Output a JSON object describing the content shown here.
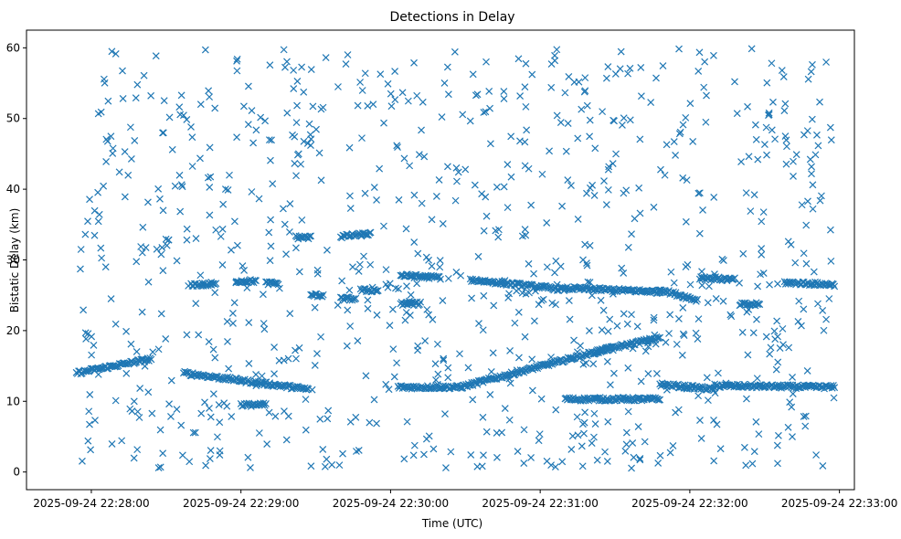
{
  "chart_data": {
    "type": "scatter",
    "title": "Detections in Delay",
    "xlabel": "Time (UTC)",
    "ylabel": "Bistatic Delay (km)",
    "marker": "x",
    "color": "#1f77b4",
    "grid": false,
    "x_axis": {
      "type": "time",
      "min": "2025-09-24 22:27:34",
      "max": "2025-09-24 22:33:06",
      "ticks": [
        "2025-09-24 22:28:00",
        "2025-09-24 22:29:00",
        "2025-09-24 22:30:00",
        "2025-09-24 22:31:00",
        "2025-09-24 22:32:00",
        "2025-09-24 22:33:00"
      ]
    },
    "y_axis": {
      "min": -2.5,
      "max": 62.5,
      "ticks": [
        0,
        10,
        20,
        30,
        40,
        50,
        60
      ]
    },
    "tracks": [
      {
        "x_start": "2025-09-24 22:27:54",
        "x_end": "2025-09-24 22:28:24",
        "y_start": 14.0,
        "y_end": 16.0
      },
      {
        "x_start": "2025-09-24 22:28:37",
        "x_end": "2025-09-24 22:29:27",
        "y_start": 14.0,
        "y_end": 11.7
      },
      {
        "x_start": "2025-09-24 22:30:03",
        "x_end": "2025-09-24 22:30:28",
        "y_start": 12.0,
        "y_end": 12.0
      },
      {
        "x_start": "2025-09-24 22:30:28",
        "x_end": "2025-09-24 22:31:28",
        "y_start": 12.0,
        "y_end": 17.5
      },
      {
        "x_start": "2025-09-24 22:31:22",
        "x_end": "2025-09-24 22:31:48",
        "y_start": 17.0,
        "y_end": 19.0
      },
      {
        "x_start": "2025-09-24 22:31:10",
        "x_end": "2025-09-24 22:31:48",
        "y_start": 10.3,
        "y_end": 10.3
      },
      {
        "x_start": "2025-09-24 22:31:48",
        "x_end": "2025-09-24 22:32:10",
        "y_start": 12.4,
        "y_end": 11.7
      },
      {
        "x_start": "2025-09-24 22:32:10",
        "x_end": "2025-09-24 22:32:58",
        "y_start": 12.2,
        "y_end": 12.0
      },
      {
        "x_start": "2025-09-24 22:28:40",
        "x_end": "2025-09-24 22:28:50",
        "y_start": 26.5,
        "y_end": 26.5
      },
      {
        "x_start": "2025-09-24 22:28:58",
        "x_end": "2025-09-24 22:29:06",
        "y_start": 27.0,
        "y_end": 27.0
      },
      {
        "x_start": "2025-09-24 22:29:10",
        "x_end": "2025-09-24 22:29:15",
        "y_start": 26.7,
        "y_end": 26.7
      },
      {
        "x_start": "2025-09-24 22:29:22",
        "x_end": "2025-09-24 22:29:28",
        "y_start": 33.2,
        "y_end": 33.2
      },
      {
        "x_start": "2025-09-24 22:29:28",
        "x_end": "2025-09-24 22:29:33",
        "y_start": 25.0,
        "y_end": 25.0
      },
      {
        "x_start": "2025-09-24 22:29:40",
        "x_end": "2025-09-24 22:29:52",
        "y_start": 33.3,
        "y_end": 33.7
      },
      {
        "x_start": "2025-09-24 22:29:40",
        "x_end": "2025-09-24 22:29:46",
        "y_start": 24.5,
        "y_end": 24.5
      },
      {
        "x_start": "2025-09-24 22:29:48",
        "x_end": "2025-09-24 22:29:55",
        "y_start": 25.7,
        "y_end": 25.7
      },
      {
        "x_start": "2025-09-24 22:30:04",
        "x_end": "2025-09-24 22:30:20",
        "y_start": 27.8,
        "y_end": 27.5
      },
      {
        "x_start": "2025-09-24 22:30:04",
        "x_end": "2025-09-24 22:30:12",
        "y_start": 23.8,
        "y_end": 23.8
      },
      {
        "x_start": "2025-09-24 22:30:32",
        "x_end": "2025-09-24 22:31:10",
        "y_start": 27.2,
        "y_end": 25.8
      },
      {
        "x_start": "2025-09-24 22:31:10",
        "x_end": "2025-09-24 22:31:48",
        "y_start": 26.0,
        "y_end": 25.5
      },
      {
        "x_start": "2025-09-24 22:31:48",
        "x_end": "2025-09-24 22:32:03",
        "y_start": 25.8,
        "y_end": 24.3
      },
      {
        "x_start": "2025-09-24 22:32:04",
        "x_end": "2025-09-24 22:32:18",
        "y_start": 27.5,
        "y_end": 27.2
      },
      {
        "x_start": "2025-09-24 22:32:20",
        "x_end": "2025-09-24 22:32:28",
        "y_start": 23.7,
        "y_end": 23.7
      },
      {
        "x_start": "2025-09-24 22:32:38",
        "x_end": "2025-09-24 22:32:58",
        "y_start": 26.8,
        "y_end": 26.5
      },
      {
        "x_start": "2025-09-24 22:29:00",
        "x_end": "2025-09-24 22:29:10",
        "y_start": 9.5,
        "y_end": 9.5
      }
    ],
    "clutter": {
      "note": "random false alarms uniformly scattered",
      "x_range": [
        "2025-09-24 22:27:55",
        "2025-09-24 22:32:58"
      ],
      "y_range": [
        0.5,
        60
      ],
      "approx_count": 900
    }
  }
}
